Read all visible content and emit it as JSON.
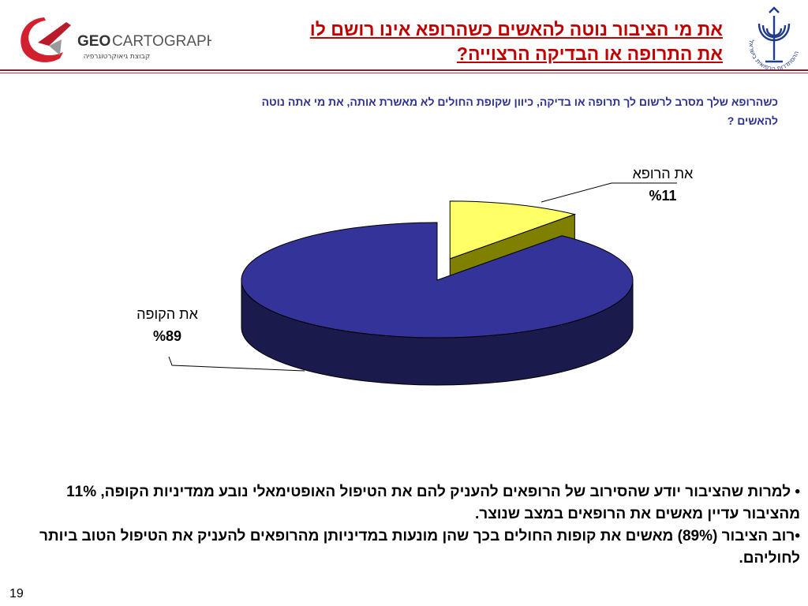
{
  "slide": {
    "title_line1": "את מי הציבור נוטה להאשים כשהרופא אינו רושם לו",
    "title_line2": "את התרופה או הבדיקה הרצוייה?",
    "question_line1": "כשהרופא שלך מסרב לרשום לך תרופה או בדיקה, כיוון שקופת החולים לא מאשרת אותה, את מי אתה נוטה",
    "question_line2": "להאשים ?",
    "bullet1": "• למרות שהציבור יודע שהסירוב של הרופאים להעניק להם את הטיפול האופטימאלי נובע ממדיניות הקופה, 11% מהציבור עדיין מאשים את הרופאים במצב שנוצר.",
    "bullet2": "•רוב הציבור (89%) מאשים את קופות החולים בכך שהן מונעות במדיניותן מהרופאים להעניק את הטיפול הטוב ביותר לחוליהם.",
    "page_number": "19"
  },
  "logo": {
    "geo_bold": "GEO",
    "geo_rest": "CARTOGRAPHY",
    "subtitle": "קבוצת גיאוקרטוגרפיה",
    "union_text": "ההסתדרות הרפואית בישראל"
  },
  "chart_data": {
    "type": "pie",
    "title": "",
    "categories": [
      "את הרופא",
      "את הקופה"
    ],
    "values": [
      11,
      89
    ],
    "value_labels": [
      "%11",
      "%89"
    ],
    "colors": [
      "#ffff66",
      "#333399"
    ],
    "side_colors": [
      "#808000",
      "#1a1a4d"
    ],
    "exploded": "את הרופא"
  }
}
